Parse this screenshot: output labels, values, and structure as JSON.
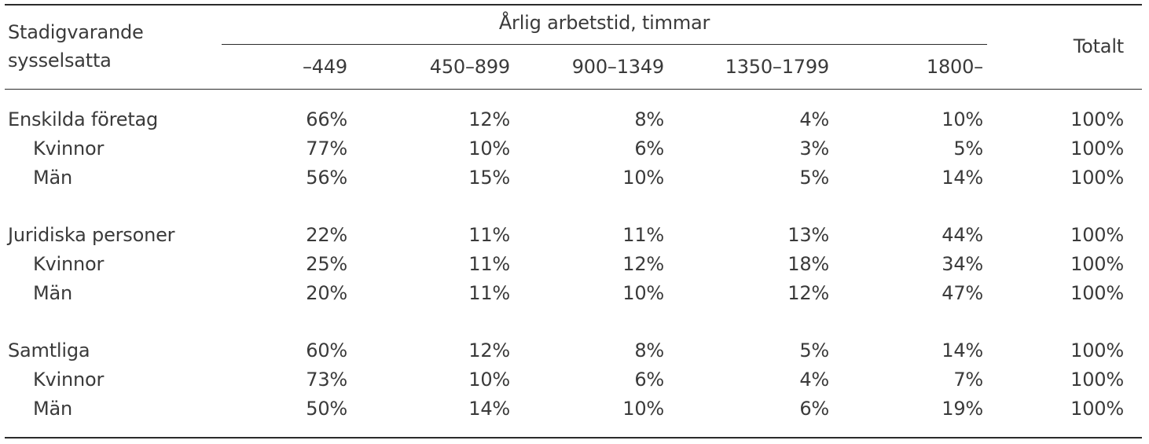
{
  "header": {
    "stub_line1": "Stadigvarande",
    "stub_line2": "sysselsatta",
    "group_title": "Årlig arbetstid, timmar",
    "columns": [
      "–449",
      "450–899",
      "900–1349",
      "1350–1799",
      "1800–"
    ],
    "total": "Totalt"
  },
  "rows": [
    {
      "label": "Enskilda företag",
      "indent": false,
      "values": [
        "66%",
        "12%",
        "8%",
        "4%",
        "10%",
        "100%"
      ]
    },
    {
      "label": "Kvinnor",
      "indent": true,
      "values": [
        "77%",
        "10%",
        "6%",
        "3%",
        "5%",
        "100%"
      ]
    },
    {
      "label": "Män",
      "indent": true,
      "values": [
        "56%",
        "15%",
        "10%",
        "5%",
        "14%",
        "100%"
      ]
    },
    {
      "label": "Juridiska personer",
      "indent": false,
      "values": [
        "22%",
        "11%",
        "11%",
        "13%",
        "44%",
        "100%"
      ]
    },
    {
      "label": "Kvinnor",
      "indent": true,
      "values": [
        "25%",
        "11%",
        "12%",
        "18%",
        "34%",
        "100%"
      ]
    },
    {
      "label": "Män",
      "indent": true,
      "values": [
        "20%",
        "11%",
        "10%",
        "12%",
        "47%",
        "100%"
      ]
    },
    {
      "label": "Samtliga",
      "indent": false,
      "values": [
        "60%",
        "12%",
        "8%",
        "5%",
        "14%",
        "100%"
      ]
    },
    {
      "label": "Kvinnor",
      "indent": true,
      "values": [
        "73%",
        "10%",
        "6%",
        "4%",
        "7%",
        "100%"
      ]
    },
    {
      "label": "Män",
      "indent": true,
      "values": [
        "50%",
        "14%",
        "10%",
        "6%",
        "19%",
        "100%"
      ]
    }
  ]
}
